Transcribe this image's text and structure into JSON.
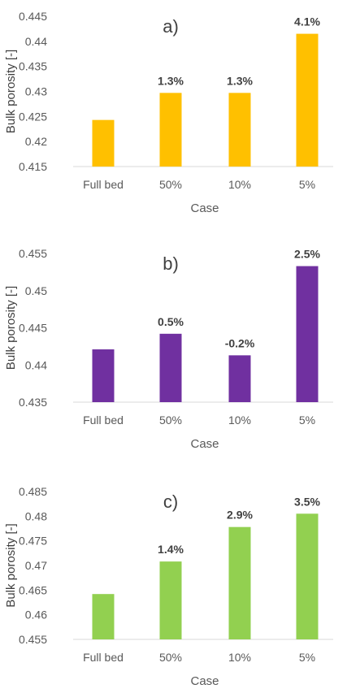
{
  "chart_data": [
    {
      "type": "bar",
      "title": "a)",
      "xlabel": "Case",
      "ylabel": "Bulk porosity [-]",
      "categories": [
        "Full bed",
        "50%",
        "10%",
        "5%"
      ],
      "values": [
        0.4243,
        0.4297,
        0.4297,
        0.4415
      ],
      "data_labels": [
        "",
        "1.3%",
        "1.3%",
        "4.1%"
      ],
      "ylim": [
        0.415,
        0.445
      ],
      "yticks": [
        "0.415",
        "0.42",
        "0.425",
        "0.43",
        "0.435",
        "0.44",
        "0.445"
      ],
      "color": "#FFC000",
      "grid": false,
      "legend": "none"
    },
    {
      "type": "bar",
      "title": "b)",
      "xlabel": "Case",
      "ylabel": "Bulk porosity [-]",
      "categories": [
        "Full bed",
        "50%",
        "10%",
        "5%"
      ],
      "values": [
        0.4421,
        0.4442,
        0.4413,
        0.4533
      ],
      "data_labels": [
        "",
        "0.5%",
        "-0.2%",
        "2.5%"
      ],
      "ylim": [
        0.435,
        0.455
      ],
      "yticks": [
        "0.435",
        "0.44",
        "0.445",
        "0.45",
        "0.455"
      ],
      "color": "#7030A0",
      "grid": false,
      "legend": "none"
    },
    {
      "type": "bar",
      "title": "c)",
      "xlabel": "Case",
      "ylabel": "Bulk porosity [-]",
      "categories": [
        "Full bed",
        "50%",
        "10%",
        "5%"
      ],
      "values": [
        0.4642,
        0.4708,
        0.4778,
        0.4805
      ],
      "data_labels": [
        "",
        "1.4%",
        "2.9%",
        "3.5%"
      ],
      "ylim": [
        0.455,
        0.485
      ],
      "yticks": [
        "0.455",
        "0.46",
        "0.465",
        "0.47",
        "0.475",
        "0.48",
        "0.485"
      ],
      "color": "#92D050",
      "grid": false,
      "legend": "none"
    }
  ]
}
